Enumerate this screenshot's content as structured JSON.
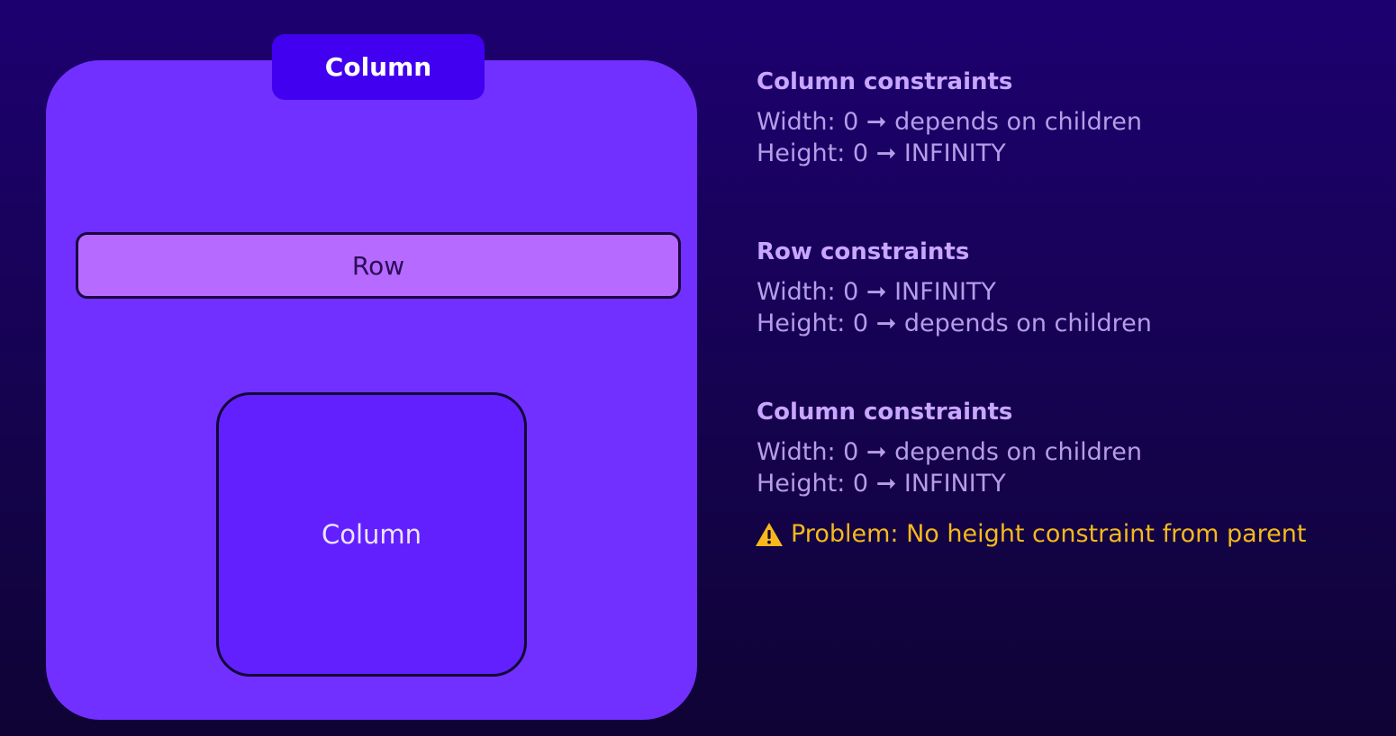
{
  "diagram": {
    "outer_column_label": "Column",
    "row_label": "Row",
    "inner_column_label": "Column"
  },
  "constraints": [
    {
      "title": "Column constraints",
      "width": "Width: 0 ➞ depends on children",
      "height": "Height: 0 ➞ INFINITY"
    },
    {
      "title": "Row constraints",
      "width": "Width: 0 ➞ INFINITY",
      "height": "Height: 0 ➞ depends on children"
    },
    {
      "title": "Column constraints",
      "width": "Width: 0 ➞ depends on children",
      "height": "Height: 0 ➞ INFINITY"
    }
  ],
  "problem": {
    "icon": "warning-icon",
    "text": "Problem: No height constraint from parent"
  },
  "colors": {
    "background": "#1d0070",
    "outer_column": "#7130ff",
    "outer_tab": "#4100f0",
    "row": "#b66aff",
    "inner_column": "#6320ff",
    "heading_text": "#c9a6ff",
    "body_text": "#b79ce8",
    "warning": "#f6b81c"
  }
}
